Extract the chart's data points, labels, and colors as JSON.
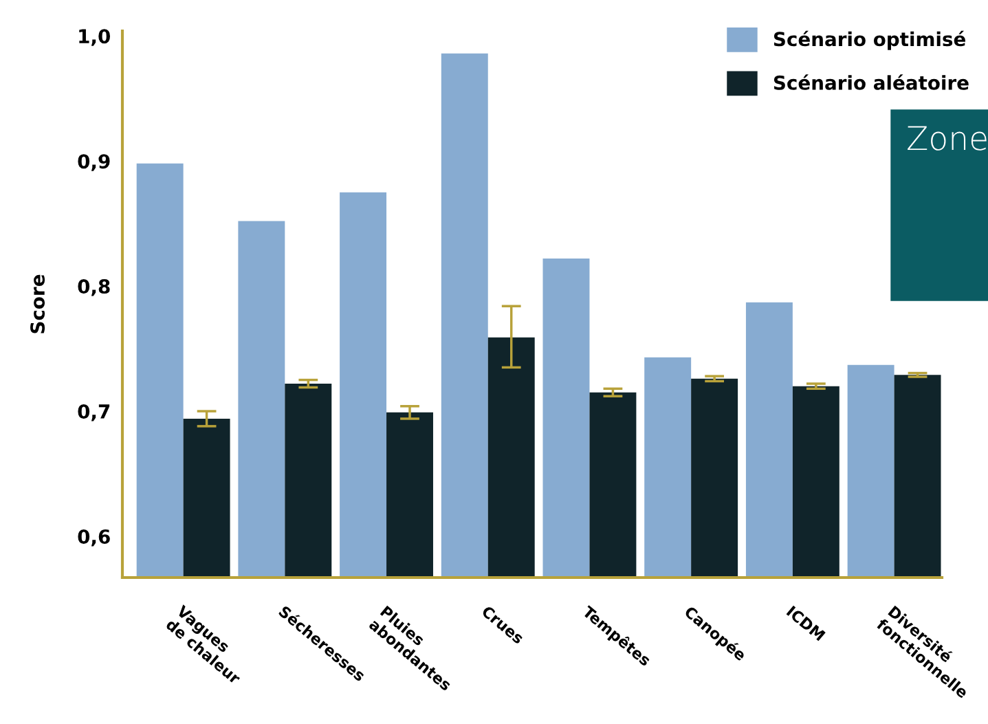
{
  "chart_data": {
    "type": "bar",
    "ylabel": "Score",
    "categories": [
      "Vagues\nde chaleur",
      "Sécheresses",
      "Pluies\nabondantes",
      "Crues",
      "Tempêtes",
      "Canopée",
      "ICDM",
      "Diversité\nfonctionnelle"
    ],
    "series": [
      {
        "name": "Scénario optimisé",
        "color": "#87abd1",
        "values": [
          0.898,
          0.852,
          0.875,
          0.986,
          0.822,
          0.743,
          0.787,
          0.737
        ]
      },
      {
        "name": "Scénario aléatoire",
        "color": "#10242a",
        "values": [
          0.694,
          0.722,
          0.699,
          0.759,
          0.715,
          0.726,
          0.72,
          0.729
        ],
        "errors": [
          0.006,
          0.003,
          0.005,
          [
            0.735,
            0.784
          ],
          0.003,
          0.002,
          0.002,
          0.0015
        ]
      }
    ],
    "ylim": [
      0.567,
      1.004
    ],
    "yticks": [
      {
        "value": 0.6,
        "label": "0,6"
      },
      {
        "value": 0.7,
        "label": "0,7"
      },
      {
        "value": 0.8,
        "label": "0,8"
      },
      {
        "value": 0.9,
        "label": "0,9"
      },
      {
        "value": 1.0,
        "label": "1,0"
      }
    ],
    "grid": false,
    "legend": "top right",
    "annotations": [
      "Zone"
    ]
  }
}
